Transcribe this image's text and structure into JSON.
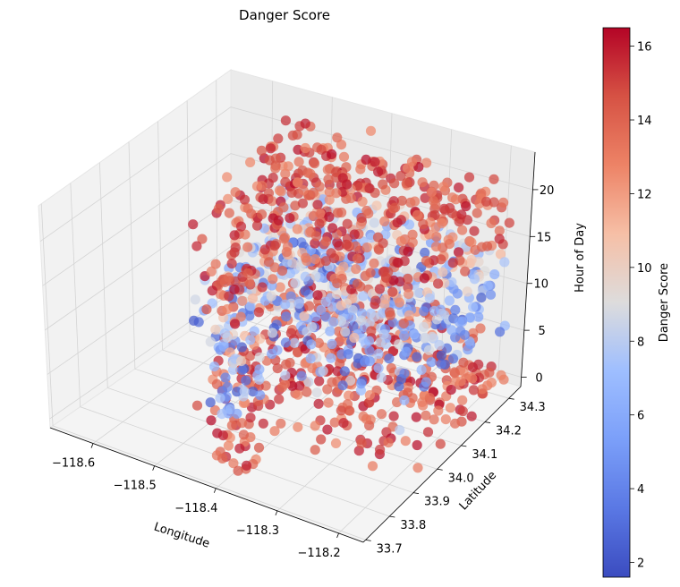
{
  "chart_data": {
    "type": "scatter",
    "projection": "3d",
    "title": "Danger Score",
    "xlabel": "Longitude",
    "ylabel": "Latitude",
    "zlabel": "Hour of Day",
    "xlim": [
      -118.67,
      -118.16
    ],
    "ylim": [
      33.69,
      34.35
    ],
    "zlim": [
      -1,
      24
    ],
    "xticks": [
      "−118.6",
      "−118.5",
      "−118.4",
      "−118.3",
      "−118.2"
    ],
    "xtick_values": [
      -118.6,
      -118.5,
      -118.4,
      -118.3,
      -118.2
    ],
    "yticks": [
      "33.7",
      "33.8",
      "33.9",
      "34.0",
      "34.1",
      "34.2",
      "34.3"
    ],
    "ytick_values": [
      33.7,
      33.8,
      33.9,
      34.0,
      34.1,
      34.2,
      34.3
    ],
    "zticks": [
      "0",
      "5",
      "10",
      "15",
      "20"
    ],
    "ztick_values": [
      0,
      5,
      10,
      15,
      20
    ],
    "colorbar": {
      "label": "Danger Score",
      "colormap": "coolwarm",
      "range": [
        1.6,
        16.5
      ],
      "ticks": [
        "2",
        "4",
        "6",
        "8",
        "10",
        "12",
        "14",
        "16"
      ],
      "tick_values": [
        2,
        4,
        6,
        8,
        10,
        12,
        14,
        16
      ]
    },
    "grid": true,
    "points_summary": {
      "count_approx": 1500,
      "lon_range": [
        -118.56,
        -118.16
      ],
      "lat_range": [
        33.7,
        34.33
      ],
      "hours": "integers 0-23",
      "note": "dense column of points spanning all hours; high scores near hours 0-6 and 17-22, low scores near hours 7-13 and 15-16"
    }
  },
  "colors": {
    "low": "#3b4cc0",
    "mid": "#dddddd",
    "high": "#b40426"
  }
}
